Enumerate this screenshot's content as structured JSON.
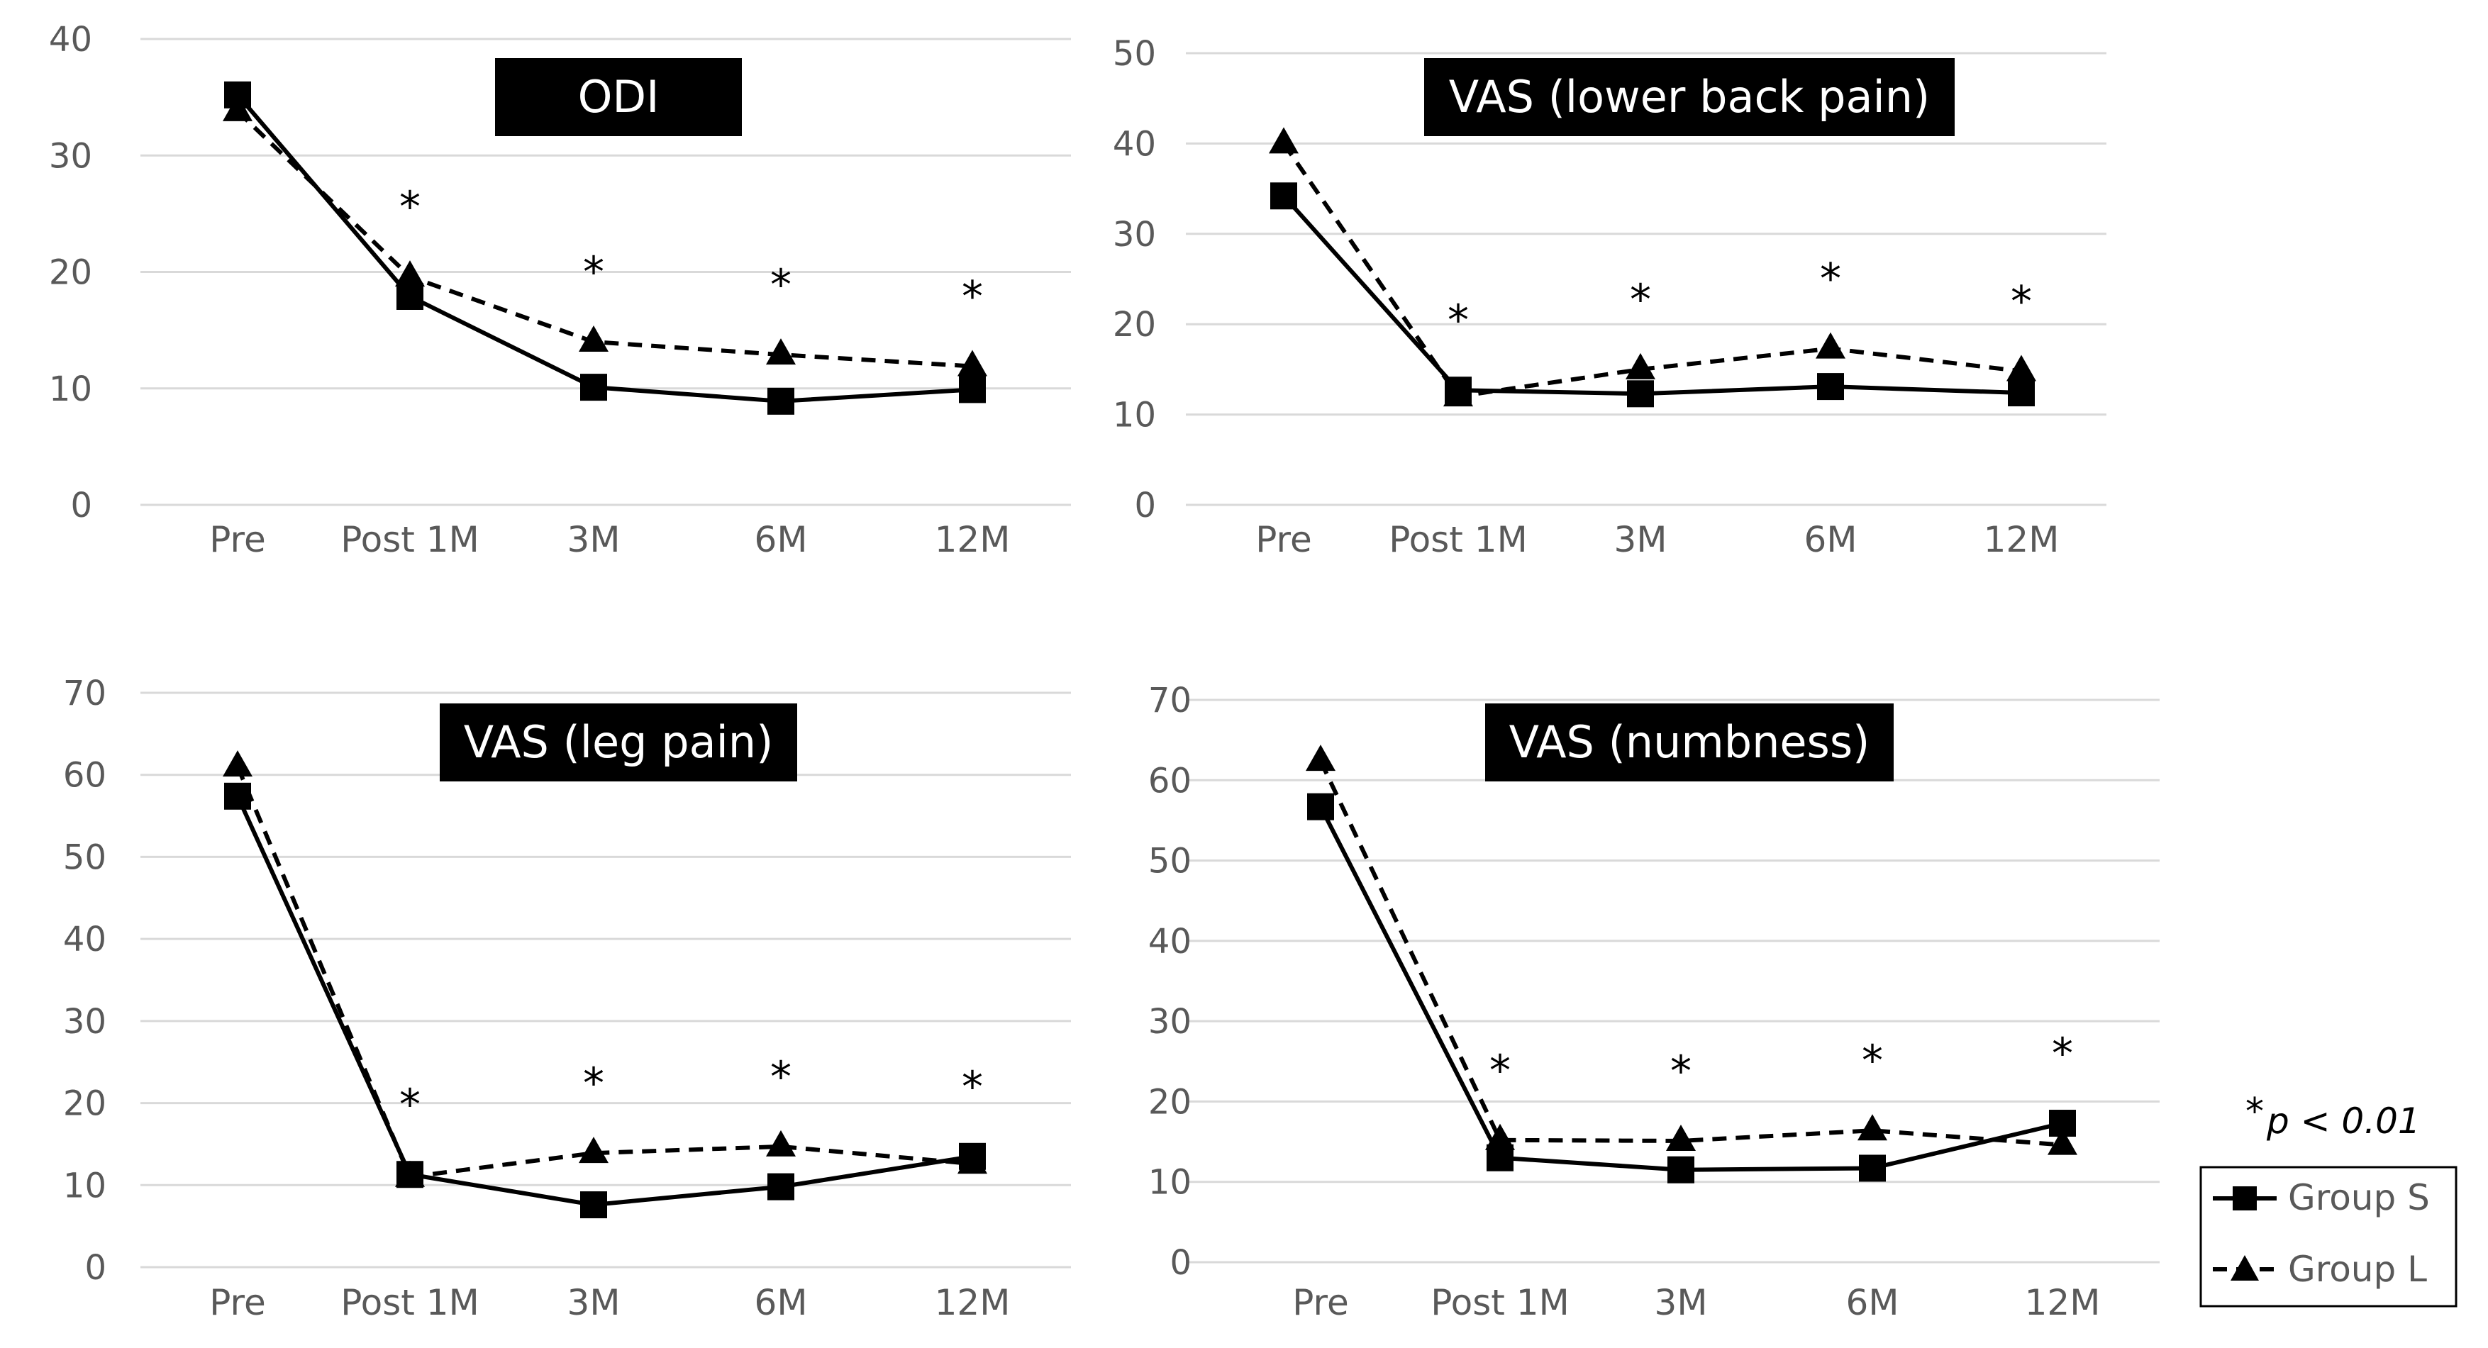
{
  "chart_data": [
    {
      "type": "line",
      "title": "ODI",
      "categories": [
        "Pre",
        "Post 1M",
        "3M",
        "6M",
        "12M"
      ],
      "yticks": [
        "0",
        "10",
        "20",
        "30",
        "40"
      ],
      "ylim": [
        0,
        40
      ],
      "series": [
        {
          "name": "Group S",
          "values": [
            35.2,
            17.9,
            10.1,
            8.9,
            9.9
          ]
        },
        {
          "name": "Group L",
          "values": [
            33.8,
            19.6,
            14.0,
            12.9,
            11.9
          ]
        }
      ],
      "significance": [
        "",
        "*",
        "*",
        "*",
        "*"
      ],
      "xlabel": "",
      "ylabel": ""
    },
    {
      "type": "line",
      "title": "VAS (lower back pain)",
      "categories": [
        "Pre",
        "Post 1M",
        "3M",
        "6M",
        "12M"
      ],
      "yticks": [
        "0",
        "10",
        "20",
        "30",
        "40",
        "50"
      ],
      "ylim": [
        0,
        50
      ],
      "series": [
        {
          "name": "Group S",
          "values": [
            34.2,
            12.7,
            12.3,
            13.1,
            12.4
          ]
        },
        {
          "name": "Group L",
          "values": [
            40.0,
            12.0,
            15.0,
            17.3,
            14.8
          ]
        }
      ],
      "significance": [
        "",
        "*",
        "*",
        "*",
        "*"
      ],
      "xlabel": "",
      "ylabel": ""
    },
    {
      "type": "line",
      "title": "VAS (leg pain)",
      "categories": [
        "Pre",
        "Post 1M",
        "3M",
        "6M",
        "12M"
      ],
      "yticks": [
        "0",
        "10",
        "20",
        "30",
        "40",
        "50",
        "60",
        "70"
      ],
      "ylim": [
        0,
        70
      ],
      "series": [
        {
          "name": "Group S",
          "values": [
            57.4,
            11.3,
            7.6,
            9.8,
            13.5
          ]
        },
        {
          "name": "Group L",
          "values": [
            61.0,
            11.0,
            13.9,
            14.7,
            12.6
          ]
        }
      ],
      "significance": [
        "",
        "*",
        "*",
        "*",
        "*"
      ],
      "xlabel": "",
      "ylabel": ""
    },
    {
      "type": "line",
      "title": "VAS (numbness)",
      "categories": [
        "Pre",
        "Post 1M",
        "3M",
        "6M",
        "12M"
      ],
      "yticks": [
        "0",
        "10",
        "20",
        "30",
        "40",
        "50",
        "60",
        "70"
      ],
      "ylim": [
        0,
        70
      ],
      "series": [
        {
          "name": "Group S",
          "values": [
            56.7,
            13.0,
            11.5,
            11.7,
            17.3
          ]
        },
        {
          "name": "Group L",
          "values": [
            62.4,
            15.2,
            15.1,
            16.4,
            14.6
          ]
        }
      ],
      "significance": [
        "",
        "*",
        "*",
        "*",
        "*"
      ],
      "xlabel": "",
      "ylabel": ""
    }
  ],
  "legend": {
    "items": [
      {
        "label": "Group S",
        "line": "solid",
        "marker": "square"
      },
      {
        "label": "Group L",
        "line": "dashed",
        "marker": "triangle"
      }
    ]
  },
  "footnote": {
    "symbol": "*",
    "text": "p < 0.01"
  },
  "colors": {
    "ink": "#000000",
    "grid": "#d9d9d9",
    "axis_text": "#595959",
    "title_bg": "#000000",
    "title_text": "#ffffff",
    "background": "#ffffff"
  }
}
